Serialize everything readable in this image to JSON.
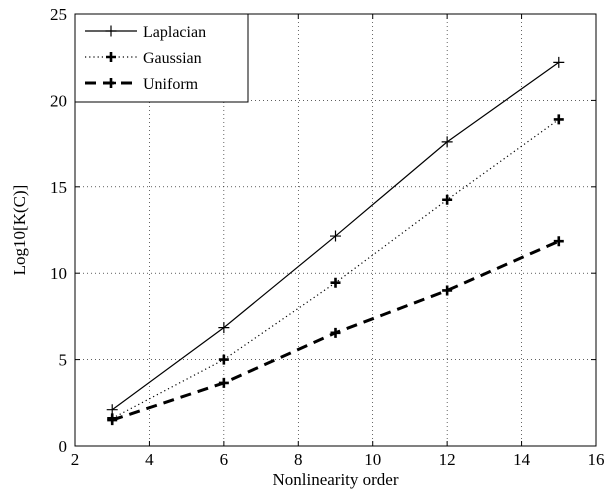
{
  "chart_data": {
    "type": "line",
    "xlabel": "Nonlinearity order",
    "ylabel": "Log10[K(C)]",
    "xlim": [
      2,
      16
    ],
    "ylim": [
      0,
      25
    ],
    "x_ticks": [
      "2",
      "4",
      "6",
      "8",
      "10",
      "12",
      "14",
      "16"
    ],
    "y_ticks": [
      "0",
      "5",
      "10",
      "15",
      "20",
      "25"
    ],
    "grid": true,
    "legend_position": "top-left",
    "x": [
      3,
      6,
      9,
      12,
      15
    ],
    "series": [
      {
        "name": "Laplacian",
        "line_style": "solid",
        "line_width": "thin",
        "marker": "+",
        "values": [
          2.1,
          6.85,
          12.15,
          17.6,
          22.2
        ]
      },
      {
        "name": "Gaussian",
        "line_style": "dotted",
        "line_width": "thin",
        "marker": "+",
        "values": [
          1.6,
          5.0,
          9.45,
          14.25,
          18.9
        ]
      },
      {
        "name": "Uniform",
        "line_style": "dashed",
        "line_width": "thick",
        "marker": "+",
        "values": [
          1.5,
          3.65,
          6.55,
          9.0,
          11.85
        ]
      }
    ]
  }
}
